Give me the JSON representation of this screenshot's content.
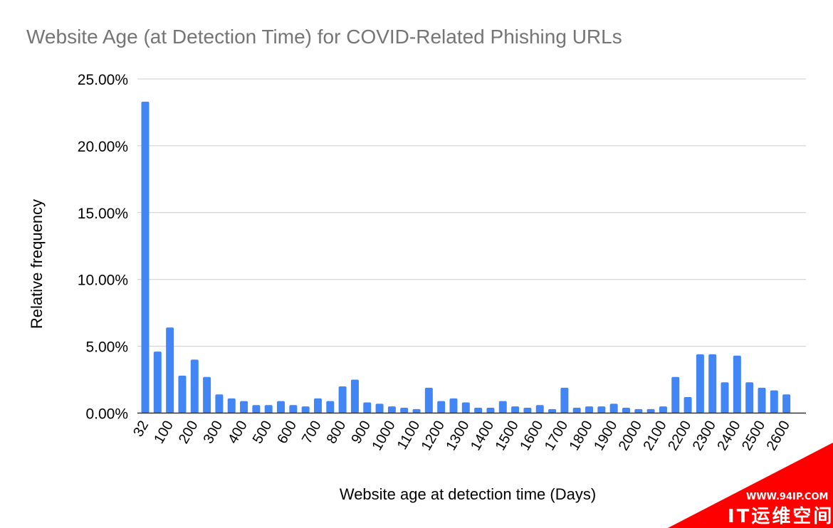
{
  "chart_data": {
    "type": "bar",
    "title": "Website Age (at Detection Time) for COVID-Related Phishing URLs",
    "xlabel": "Website age at detection time (Days)",
    "ylabel": "Relative frequency",
    "ylim": [
      0,
      25
    ],
    "y_ticks": [
      "0.00%",
      "5.00%",
      "10.00%",
      "15.00%",
      "20.00%",
      "25.00%"
    ],
    "y_tick_values": [
      0,
      5,
      10,
      15,
      20,
      25
    ],
    "x_tick_labels": [
      "32",
      "100",
      "200",
      "300",
      "400",
      "500",
      "600",
      "700",
      "800",
      "900",
      "1000",
      "1100",
      "1200",
      "1300",
      "1400",
      "1500",
      "1600",
      "1700",
      "1800",
      "1900",
      "2000",
      "2100",
      "2200",
      "2300",
      "2400",
      "2500",
      "2600"
    ],
    "grid": true,
    "bar_color": "#4285f4",
    "values": [
      23.3,
      4.6,
      6.4,
      2.8,
      4.0,
      2.7,
      1.4,
      1.1,
      0.9,
      0.6,
      0.6,
      0.9,
      0.6,
      0.5,
      1.1,
      0.9,
      2.0,
      2.5,
      0.8,
      0.7,
      0.5,
      0.4,
      0.3,
      1.9,
      0.9,
      1.1,
      0.8,
      0.4,
      0.4,
      0.9,
      0.5,
      0.4,
      0.6,
      0.3,
      1.9,
      0.4,
      0.5,
      0.5,
      0.7,
      0.4,
      0.3,
      0.3,
      0.5,
      2.7,
      1.2,
      4.4,
      4.4,
      2.3,
      4.3,
      2.3,
      1.9,
      1.7,
      1.4
    ]
  },
  "watermark": {
    "url": "WWW.94IP.COM",
    "text": "IT运维空间",
    "color": "#ff0000"
  }
}
